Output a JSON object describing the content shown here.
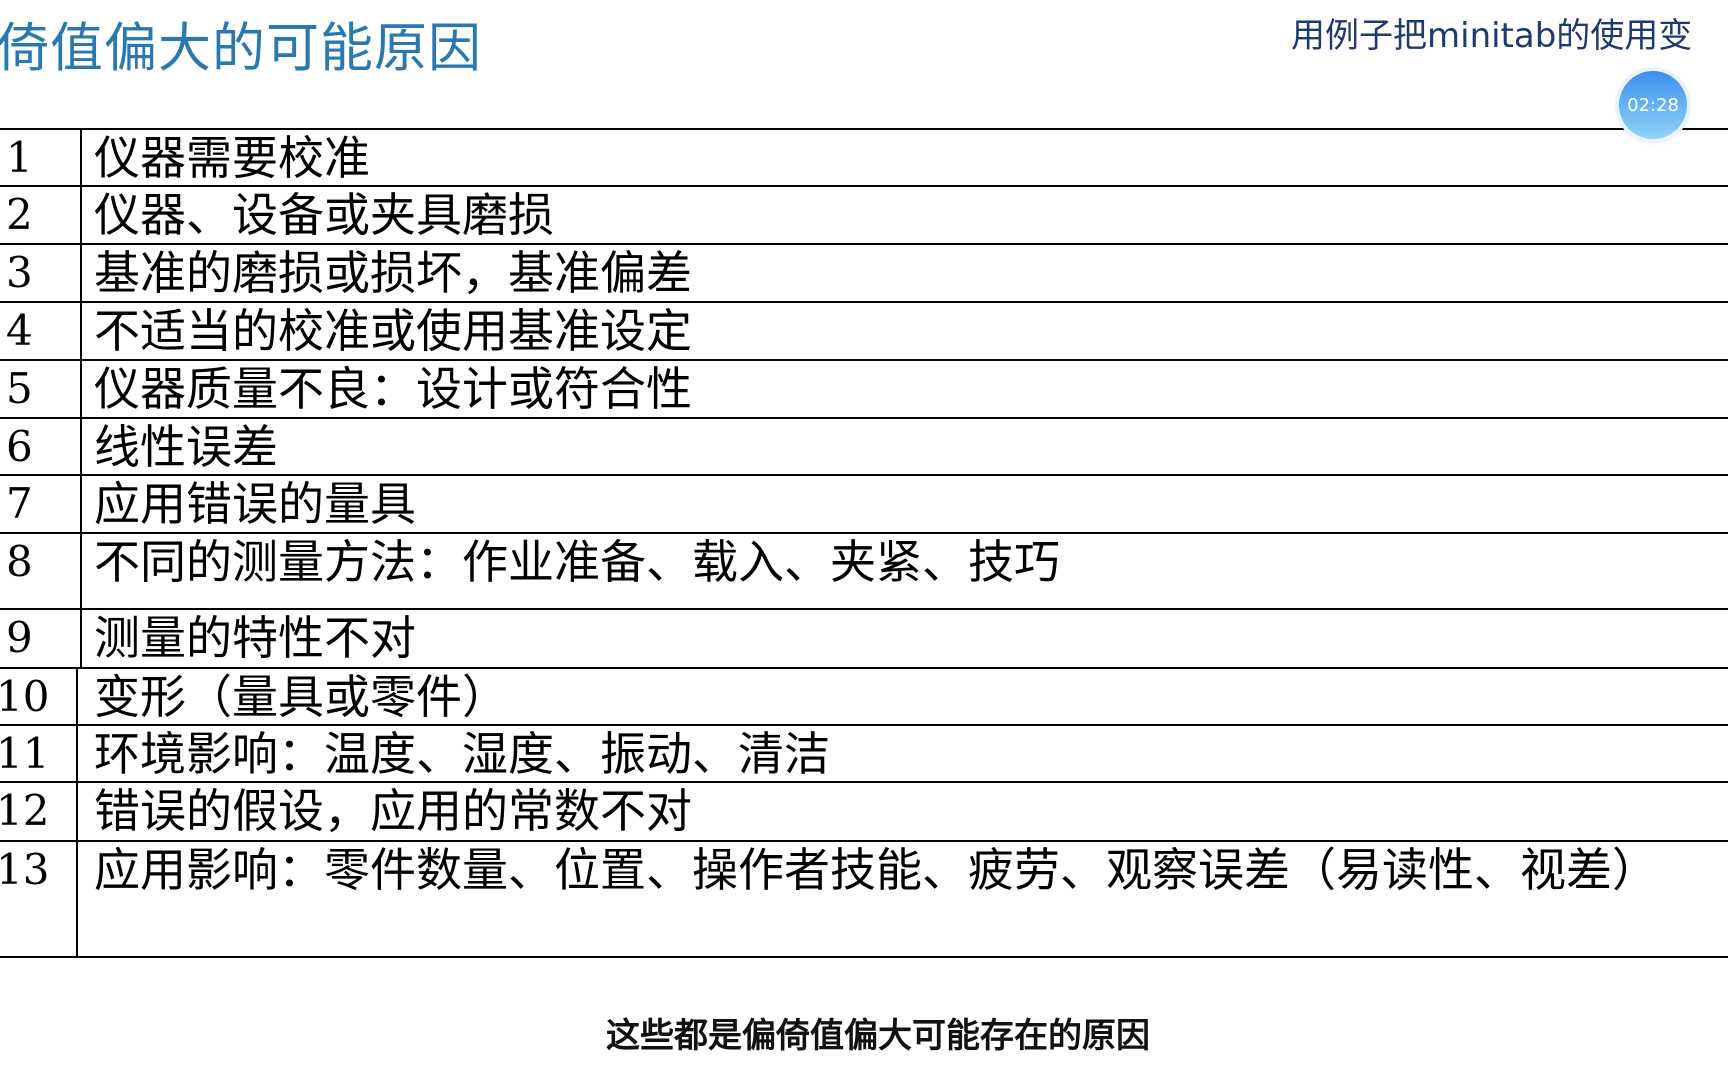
{
  "header": {
    "title": "倚值偏大的可能原因",
    "subtitle": "用例子把minitab的使用变",
    "timer": "02:28"
  },
  "table": {
    "rows": [
      {
        "num": "1",
        "text": "仪器需要校准"
      },
      {
        "num": "2",
        "text": "仪器、设备或夹具磨损"
      },
      {
        "num": "3",
        "text": "基准的磨损或损坏，基准偏差"
      },
      {
        "num": "4",
        "text": "不适当的校准或使用基准设定"
      },
      {
        "num": "5",
        "text": "仪器质量不良：设计或符合性"
      },
      {
        "num": "6",
        "text": "线性误差"
      },
      {
        "num": "7",
        "text": "应用错误的量具"
      },
      {
        "num": "8",
        "text": "不同的测量方法：作业准备、载入、夹紧、技巧"
      },
      {
        "num": "9",
        "text": "测量的特性不对"
      },
      {
        "num": "10",
        "text": "变形（量具或零件）"
      },
      {
        "num": "11",
        "text": "环境影响：温度、湿度、振动、清洁"
      },
      {
        "num": "12",
        "text": "错误的假设，应用的常数不对"
      },
      {
        "num": "13",
        "text": "应用影响：零件数量、位置、操作者技能、疲劳、观察误差（易读性、视差）"
      }
    ]
  },
  "caption": "这些都是偏倚值偏大可能存在的原因"
}
